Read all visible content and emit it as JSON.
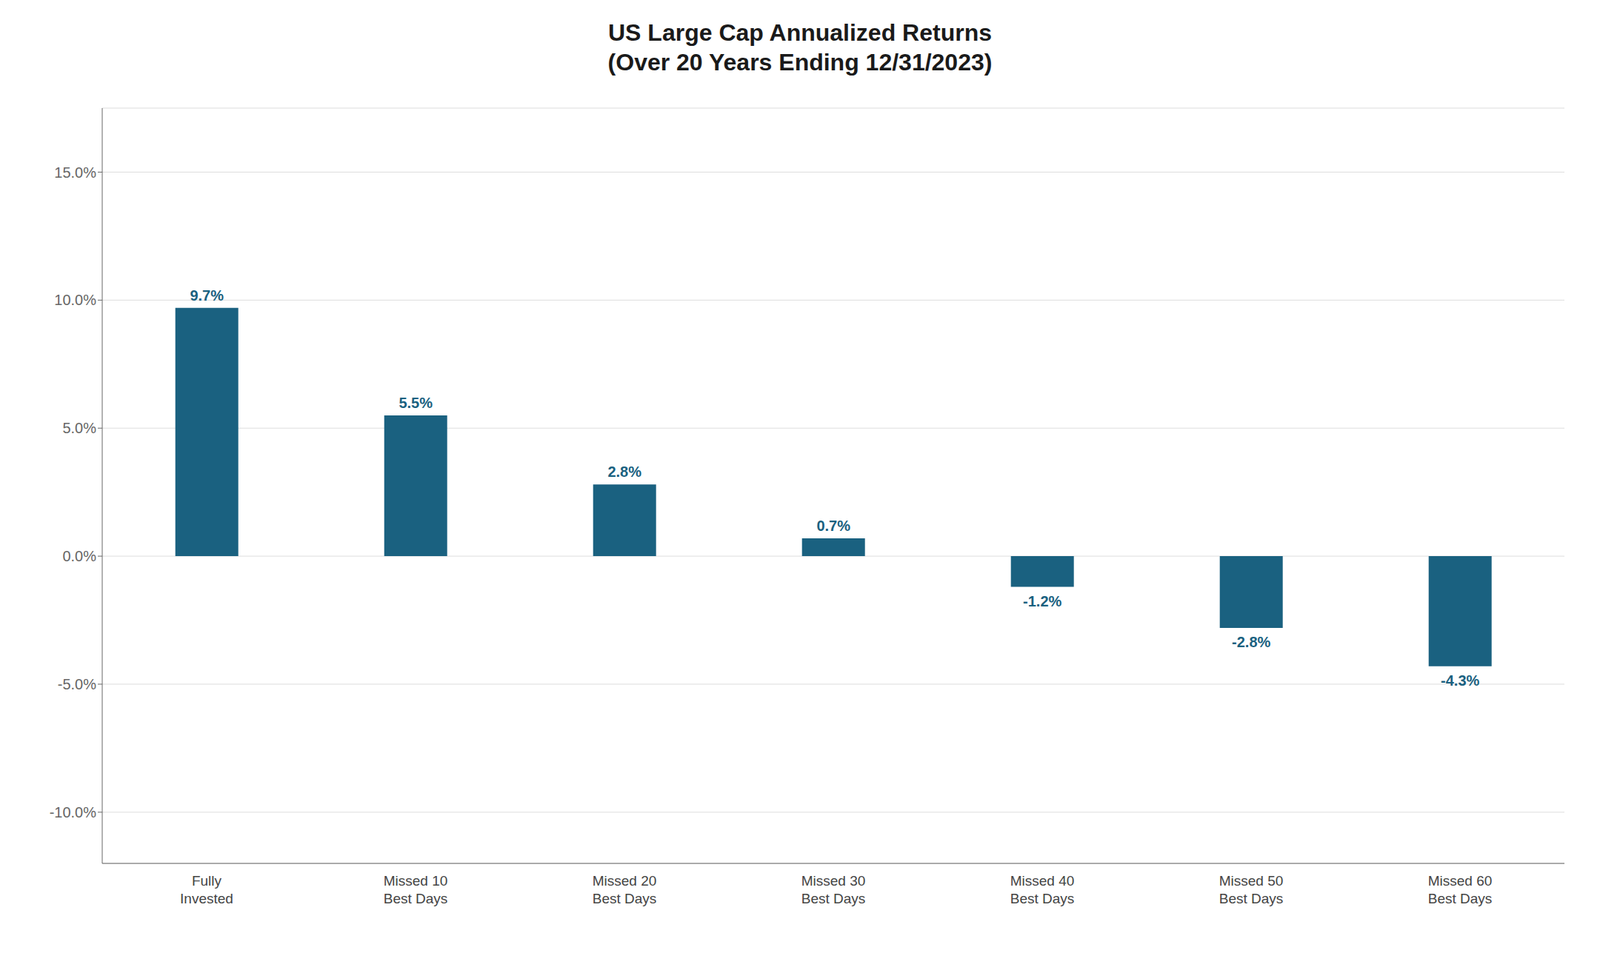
{
  "chart_data": {
    "type": "bar",
    "title": "US Large Cap Annualized Returns\n(Over 20 Years Ending 12/31/2023)",
    "categories": [
      "Fully\nInvested",
      "Missed 10\nBest Days",
      "Missed 20\nBest Days",
      "Missed 30\nBest Days",
      "Missed 40\nBest Days",
      "Missed 50\nBest Days",
      "Missed 60\nBest Days"
    ],
    "values": [
      9.7,
      5.5,
      2.8,
      0.7,
      -1.2,
      -2.8,
      -4.3
    ],
    "value_labels": [
      "9.7%",
      "5.5%",
      "2.8%",
      "0.7%",
      "-1.2%",
      "-2.8%",
      "-4.3%"
    ],
    "color": "#1a6180",
    "ylim": [
      -12.0,
      17.5
    ],
    "yticks": [
      {
        "value": -10.0,
        "label": "-10.0%"
      },
      {
        "value": -5.0,
        "label": "-5.0%"
      },
      {
        "value": 0.0,
        "label": "0.0%"
      },
      {
        "value": 5.0,
        "label": "5.0%"
      },
      {
        "value": 10.0,
        "label": "10.0%"
      },
      {
        "value": 15.0,
        "label": "15.0%"
      }
    ],
    "grid": true
  }
}
